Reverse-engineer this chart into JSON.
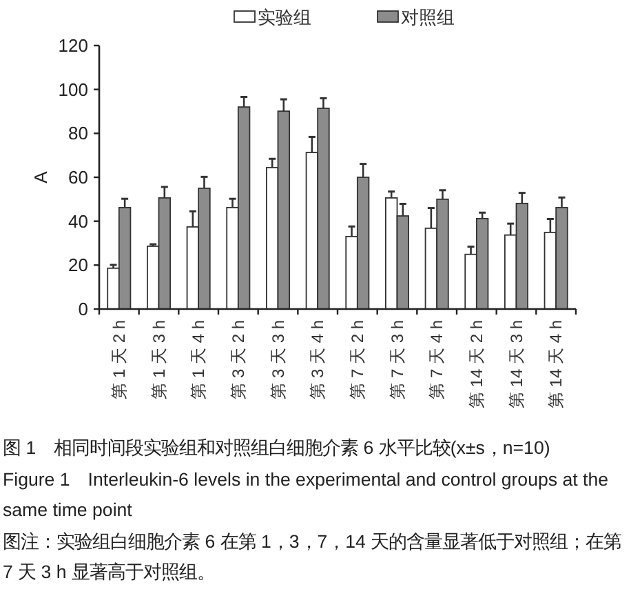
{
  "chart_data": {
    "type": "bar",
    "title": "图 1　相同时间段实验组和对照组白细胞介素 6 水平比较(x±s，n=10)",
    "subtitle": "Figure 1　Interleukin-6 levels in the experimental and control groups at the same time point",
    "annotations": [
      "图注：实验组白细胞介素 6 在第 1，3，7，14 天的含量显著低于对照组；在第 7 天 3 h 显著高于对照组。"
    ],
    "ylabel": "A",
    "categories": [
      "第 1 天 2 h",
      "第 1 天 3 h",
      "第 1 天 4 h",
      "第 3 天 2 h",
      "第 3 天 3 h",
      "第 3 天 4 h",
      "第 7 天 2 h",
      "第 7 天 3 h",
      "第 7 天 4 h",
      "第 14 天 2 h",
      "第 14 天 3 h",
      "第 14 天 4 h"
    ],
    "series": [
      {
        "name": "实验组",
        "color": "#ffffff",
        "values": [
          18.6,
          28.6,
          37.4,
          46.2,
          64.4,
          71.3,
          33.0,
          50.6,
          36.8,
          24.9,
          33.7,
          34.9
        ],
        "errors": [
          [
            18.6,
            20.1
          ],
          [
            28.6,
            29.5
          ],
          [
            37.4,
            44.5
          ],
          [
            46.2,
            50.2
          ],
          [
            64.4,
            68.4
          ],
          [
            71.3,
            78.4
          ],
          [
            33.0,
            37.6
          ],
          [
            50.6,
            53.5
          ],
          [
            36.8,
            46.0
          ],
          [
            24.9,
            28.4
          ],
          [
            33.7,
            38.9
          ],
          [
            34.9,
            41.0
          ]
        ]
      },
      {
        "name": "对照组",
        "color": "#8c8c8c",
        "values": [
          46.2,
          50.6,
          55.0,
          92.0,
          90.1,
          91.4,
          60.0,
          42.4,
          50.0,
          41.2,
          48.1,
          46.2
        ],
        "errors": [
          [
            46.2,
            50.2
          ],
          [
            50.6,
            55.6
          ],
          [
            55.0,
            60.2
          ],
          [
            92.0,
            96.6
          ],
          [
            90.1,
            95.5
          ],
          [
            91.4,
            96.0
          ],
          [
            60.0,
            66.1
          ],
          [
            42.4,
            47.9
          ],
          [
            50.0,
            54.1
          ],
          [
            41.2,
            43.9
          ],
          [
            48.1,
            52.9
          ],
          [
            46.2,
            50.8
          ]
        ]
      }
    ],
    "ylim": [
      0,
      120
    ],
    "yticks": [
      0,
      20,
      40,
      60,
      80,
      100,
      120
    ],
    "legend": "top"
  }
}
